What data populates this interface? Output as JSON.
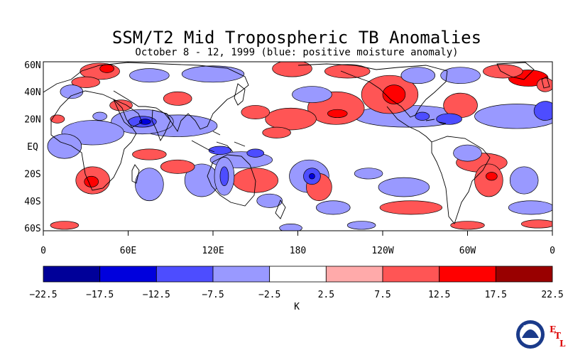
{
  "title": "SSM/T2 Mid Tropospheric TB Anomalies",
  "subtitle": "October 8 - 12, 1999 (blue: positive moisture anomaly)",
  "map": {
    "lat_labels": [
      "60N",
      "40N",
      "20N",
      "EQ",
      "20S",
      "40S",
      "60S"
    ],
    "lat_values": [
      60,
      40,
      20,
      0,
      -20,
      -40,
      -60
    ],
    "lon_labels": [
      "0",
      "60E",
      "120E",
      "180",
      "120W",
      "60W",
      "0"
    ],
    "lon_values": [
      0,
      60,
      120,
      180,
      240,
      300,
      360
    ],
    "lat_range": [
      -62,
      62
    ],
    "lon_range": [
      0,
      360
    ]
  },
  "colorbar": {
    "unit_label": "K",
    "tick_labels": [
      "-22.5",
      "-17.5",
      "-12.5",
      "-7.5",
      "-2.5",
      "2.5",
      "7.5",
      "12.5",
      "17.5",
      "22.5"
    ],
    "colors": [
      "#000099",
      "#0000dd",
      "#4d4dff",
      "#9999ff",
      "#ffffff",
      "#ffaaaa",
      "#ff5555",
      "#ff0000",
      "#990000"
    ]
  },
  "anomaly_features": [
    {
      "lon": 70,
      "lat": 18,
      "rx": 22,
      "ry": 9,
      "level": 3
    },
    {
      "lon": 70,
      "lat": 18,
      "rx": 10,
      "ry": 4,
      "level": 2
    },
    {
      "lon": 72,
      "lat": 18,
      "rx": 4,
      "ry": 2,
      "level": 1
    },
    {
      "lon": 95,
      "lat": 15,
      "rx": 28,
      "ry": 8,
      "level": 3
    },
    {
      "lon": 35,
      "lat": 10,
      "rx": 22,
      "ry": 9,
      "level": 3
    },
    {
      "lon": 15,
      "lat": 0,
      "rx": 12,
      "ry": 9,
      "level": 3
    },
    {
      "lon": 140,
      "lat": -10,
      "rx": 22,
      "ry": 6,
      "level": 3
    },
    {
      "lon": 125,
      "lat": -3,
      "rx": 8,
      "ry": 3,
      "level": 2
    },
    {
      "lon": 150,
      "lat": -5,
      "rx": 6,
      "ry": 3,
      "level": 2
    },
    {
      "lon": 150,
      "lat": -25,
      "rx": 16,
      "ry": 9,
      "level": 6
    },
    {
      "lon": 112,
      "lat": -25,
      "rx": 12,
      "ry": 12,
      "level": 3
    },
    {
      "lon": 128,
      "lat": -22,
      "rx": 7,
      "ry": 14,
      "level": 3
    },
    {
      "lon": 128,
      "lat": -22,
      "rx": 3,
      "ry": 7,
      "level": 2
    },
    {
      "lon": 188,
      "lat": -22,
      "rx": 14,
      "ry": 12,
      "level": 3
    },
    {
      "lon": 190,
      "lat": -22,
      "rx": 6,
      "ry": 6,
      "level": 2
    },
    {
      "lon": 190,
      "lat": -22,
      "rx": 2,
      "ry": 2,
      "level": 1
    },
    {
      "lon": 207,
      "lat": 28,
      "rx": 20,
      "ry": 12,
      "level": 6
    },
    {
      "lon": 208,
      "lat": 24,
      "rx": 7,
      "ry": 3,
      "level": 7
    },
    {
      "lon": 245,
      "lat": 38,
      "rx": 20,
      "ry": 14,
      "level": 6
    },
    {
      "lon": 248,
      "lat": 38,
      "rx": 8,
      "ry": 7,
      "level": 7
    },
    {
      "lon": 258,
      "lat": 22,
      "rx": 38,
      "ry": 8,
      "level": 3
    },
    {
      "lon": 268,
      "lat": 22,
      "rx": 5,
      "ry": 3,
      "level": 2
    },
    {
      "lon": 287,
      "lat": 20,
      "rx": 9,
      "ry": 4,
      "level": 2
    },
    {
      "lon": 295,
      "lat": 30,
      "rx": 12,
      "ry": 9,
      "level": 6
    },
    {
      "lon": 335,
      "lat": 22,
      "rx": 30,
      "ry": 9,
      "level": 3
    },
    {
      "lon": 355,
      "lat": 26,
      "rx": 8,
      "ry": 7,
      "level": 2
    },
    {
      "lon": 310,
      "lat": -12,
      "rx": 18,
      "ry": 7,
      "level": 6
    },
    {
      "lon": 315,
      "lat": -25,
      "rx": 10,
      "ry": 12,
      "level": 6
    },
    {
      "lon": 317,
      "lat": -22,
      "rx": 4,
      "ry": 3,
      "level": 7
    },
    {
      "lon": 35,
      "lat": -25,
      "rx": 12,
      "ry": 10,
      "level": 6
    },
    {
      "lon": 34,
      "lat": -26,
      "rx": 5,
      "ry": 4,
      "level": 7
    },
    {
      "lon": 75,
      "lat": -28,
      "rx": 10,
      "ry": 12,
      "level": 3
    },
    {
      "lon": 195,
      "lat": -30,
      "rx": 9,
      "ry": 10,
      "level": 6
    },
    {
      "lon": 255,
      "lat": -30,
      "rx": 18,
      "ry": 7,
      "level": 3
    },
    {
      "lon": 260,
      "lat": -45,
      "rx": 22,
      "ry": 5,
      "level": 6
    },
    {
      "lon": 175,
      "lat": 20,
      "rx": 18,
      "ry": 8,
      "level": 6
    },
    {
      "lon": 40,
      "lat": 55,
      "rx": 14,
      "ry": 6,
      "level": 6
    },
    {
      "lon": 45,
      "lat": 57,
      "rx": 5,
      "ry": 3,
      "level": 7
    },
    {
      "lon": 75,
      "lat": 52,
      "rx": 14,
      "ry": 5,
      "level": 3
    },
    {
      "lon": 120,
      "lat": 53,
      "rx": 22,
      "ry": 6,
      "level": 3
    },
    {
      "lon": 176,
      "lat": 57,
      "rx": 14,
      "ry": 6,
      "level": 6
    },
    {
      "lon": 190,
      "lat": 38,
      "rx": 14,
      "ry": 6,
      "level": 3
    },
    {
      "lon": 215,
      "lat": 55,
      "rx": 16,
      "ry": 5,
      "level": 6
    },
    {
      "lon": 265,
      "lat": 52,
      "rx": 12,
      "ry": 6,
      "level": 3
    },
    {
      "lon": 295,
      "lat": 52,
      "rx": 14,
      "ry": 6,
      "level": 3
    },
    {
      "lon": 325,
      "lat": 55,
      "rx": 14,
      "ry": 5,
      "level": 6
    },
    {
      "lon": 343,
      "lat": 50,
      "rx": 14,
      "ry": 6,
      "level": 7
    },
    {
      "lon": 355,
      "lat": 45,
      "rx": 6,
      "ry": 5,
      "level": 6
    },
    {
      "lon": 30,
      "lat": 47,
      "rx": 10,
      "ry": 4,
      "level": 6
    },
    {
      "lon": 95,
      "lat": 35,
      "rx": 10,
      "ry": 5,
      "level": 6
    },
    {
      "lon": 150,
      "lat": 25,
      "rx": 10,
      "ry": 5,
      "level": 6
    },
    {
      "lon": 165,
      "lat": 10,
      "rx": 10,
      "ry": 4,
      "level": 6
    },
    {
      "lon": 75,
      "lat": -6,
      "rx": 12,
      "ry": 4,
      "level": 6
    },
    {
      "lon": 95,
      "lat": -15,
      "rx": 12,
      "ry": 5,
      "level": 6
    },
    {
      "lon": 160,
      "lat": -40,
      "rx": 9,
      "ry": 5,
      "level": 3
    },
    {
      "lon": 205,
      "lat": -45,
      "rx": 12,
      "ry": 5,
      "level": 3
    },
    {
      "lon": 230,
      "lat": -20,
      "rx": 10,
      "ry": 4,
      "level": 3
    },
    {
      "lon": 300,
      "lat": -5,
      "rx": 10,
      "ry": 6,
      "level": 3
    },
    {
      "lon": 340,
      "lat": -25,
      "rx": 10,
      "ry": 10,
      "level": 3
    },
    {
      "lon": 345,
      "lat": -45,
      "rx": 16,
      "ry": 5,
      "level": 3
    },
    {
      "lon": 300,
      "lat": -58,
      "rx": 12,
      "ry": 3,
      "level": 6
    },
    {
      "lon": 350,
      "lat": -57,
      "rx": 12,
      "ry": 3,
      "level": 6
    },
    {
      "lon": 15,
      "lat": -58,
      "rx": 10,
      "ry": 3,
      "level": 6
    },
    {
      "lon": 225,
      "lat": -58,
      "rx": 10,
      "ry": 3,
      "level": 3
    },
    {
      "lon": 175,
      "lat": -60,
      "rx": 8,
      "ry": 3,
      "level": 3
    },
    {
      "lon": 10,
      "lat": 20,
      "rx": 5,
      "ry": 3,
      "level": 6
    },
    {
      "lon": 40,
      "lat": 22,
      "rx": 5,
      "ry": 3,
      "level": 3
    },
    {
      "lon": 55,
      "lat": 30,
      "rx": 8,
      "ry": 4,
      "level": 6
    },
    {
      "lon": 20,
      "lat": 40,
      "rx": 8,
      "ry": 5,
      "level": 3
    }
  ],
  "logo": {
    "badge": "NOAA",
    "letters": [
      "E",
      "T",
      "L"
    ],
    "badge_color": "#1a3a8a",
    "letter_color": "#dd0000"
  }
}
